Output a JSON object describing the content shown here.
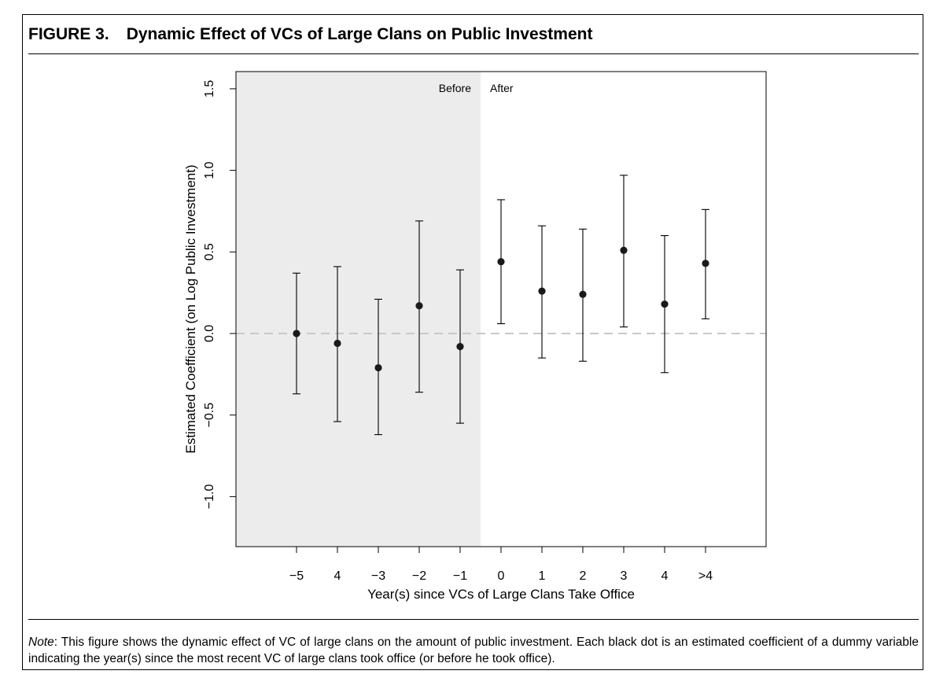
{
  "figure": {
    "label": "FIGURE 3.",
    "title": "Dynamic Effect of VCs of Large Clans on Public Investment",
    "note_label": "Note",
    "note_text": ": This figure shows the dynamic effect of VC of large clans on the amount of public investment. Each black dot is an estimated coefficient of a dummy variable indicating the year(s) since the most recent VC of large clans took office (or before he took office)."
  },
  "chart_data": {
    "type": "scatter",
    "title": "",
    "xlabel": "Year(s) since VCs of Large Clans Take Office",
    "ylabel": "Estimated Coefficient (on Log Public Investment)",
    "categories": [
      "−5",
      "4",
      "−3",
      "−2",
      "−1",
      "0",
      "1",
      "2",
      "3",
      "4",
      ">4"
    ],
    "estimates": [
      0.0,
      -0.06,
      -0.21,
      0.17,
      -0.08,
      0.44,
      0.26,
      0.24,
      0.51,
      0.18,
      0.43
    ],
    "ci_lower": [
      -0.37,
      -0.54,
      -0.62,
      -0.36,
      -0.55,
      0.06,
      -0.15,
      -0.17,
      0.04,
      -0.24,
      0.09
    ],
    "ci_upper": [
      0.37,
      0.41,
      0.21,
      0.69,
      0.39,
      0.82,
      0.66,
      0.64,
      0.97,
      0.6,
      0.76
    ],
    "ylim": [
      -1.32,
      1.6
    ],
    "yticks": [
      "−1.0",
      "−0.5",
      "0.0",
      "0.5",
      "1.0",
      "1.5"
    ],
    "ytick_values": [
      -1.0,
      -0.5,
      0.0,
      0.5,
      1.0,
      1.5
    ],
    "reference_line": 0.0,
    "shaded_region": {
      "label_left": "Before",
      "label_right": "After",
      "covers_categories": 5
    },
    "grid": false,
    "colors": {
      "points": "#1a1a1a",
      "shading": "#ececec",
      "reference": "#c8c8c8"
    }
  }
}
